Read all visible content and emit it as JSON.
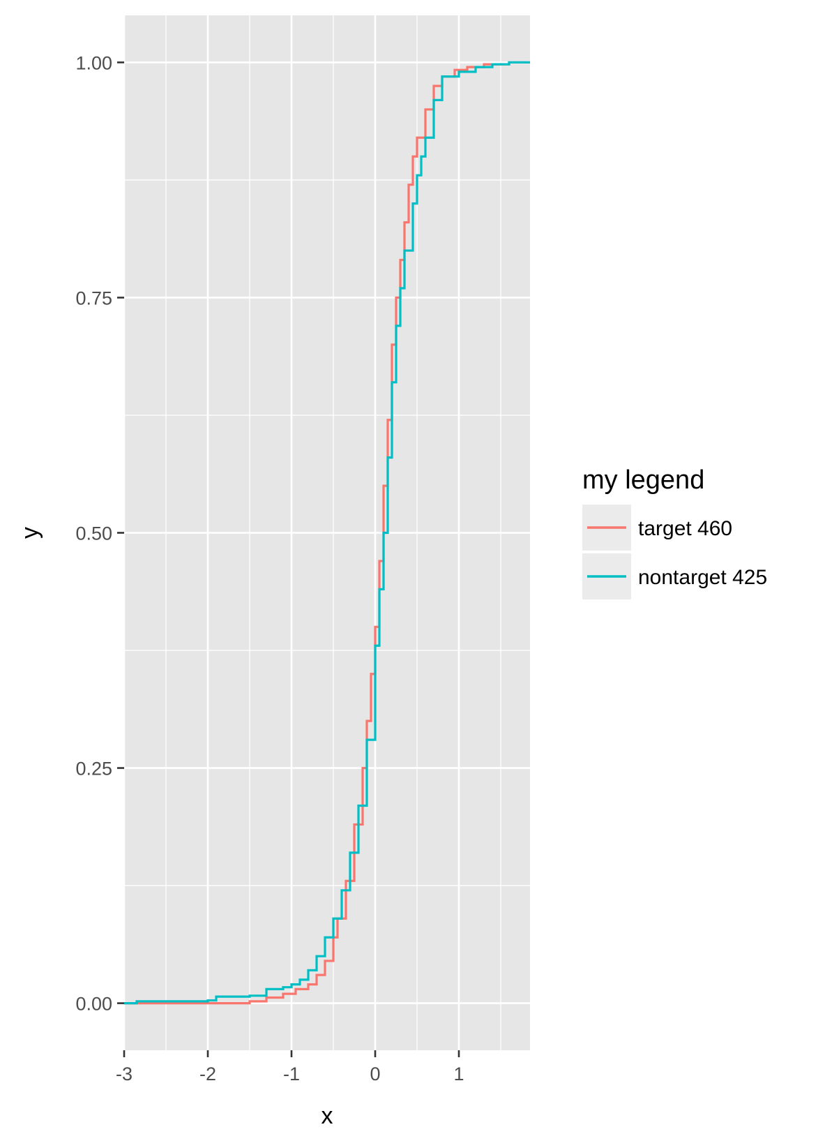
{
  "chart_data": {
    "type": "line",
    "subtype": "empirical-cdf-step",
    "xlabel": "x",
    "ylabel": "y",
    "xlim": [
      -3.0,
      1.85
    ],
    "ylim": [
      -0.05,
      1.05
    ],
    "x_ticks": [
      -3,
      -2,
      -1,
      0,
      1
    ],
    "x_tick_labels": [
      "-3",
      "-2",
      "-1",
      "0",
      "1"
    ],
    "y_ticks": [
      0,
      0.25,
      0.5,
      0.75,
      1
    ],
    "y_tick_labels": [
      "0.00",
      "0.25",
      "0.50",
      "0.75",
      "1.00"
    ],
    "grid": true,
    "panel_background": "#e6e6e6",
    "grid_color": "#ffffff",
    "legend": {
      "title": "my legend",
      "position": "right"
    },
    "series": [
      {
        "name": "target 460",
        "color": "#f8766d",
        "points": [
          [
            -3.0,
            0.0
          ],
          [
            -1.7,
            0.0
          ],
          [
            -1.5,
            0.002
          ],
          [
            -1.3,
            0.006
          ],
          [
            -1.1,
            0.01
          ],
          [
            -0.95,
            0.015
          ],
          [
            -0.8,
            0.02
          ],
          [
            -0.7,
            0.03
          ],
          [
            -0.6,
            0.045
          ],
          [
            -0.5,
            0.07
          ],
          [
            -0.45,
            0.09
          ],
          [
            -0.35,
            0.13
          ],
          [
            -0.25,
            0.19
          ],
          [
            -0.15,
            0.25
          ],
          [
            -0.1,
            0.3
          ],
          [
            -0.05,
            0.35
          ],
          [
            0.0,
            0.4
          ],
          [
            0.05,
            0.47
          ],
          [
            0.1,
            0.55
          ],
          [
            0.15,
            0.62
          ],
          [
            0.2,
            0.7
          ],
          [
            0.25,
            0.75
          ],
          [
            0.3,
            0.79
          ],
          [
            0.35,
            0.83
          ],
          [
            0.4,
            0.87
          ],
          [
            0.45,
            0.9
          ],
          [
            0.5,
            0.92
          ],
          [
            0.6,
            0.95
          ],
          [
            0.7,
            0.975
          ],
          [
            0.8,
            0.985
          ],
          [
            0.95,
            0.992
          ],
          [
            1.1,
            0.995
          ],
          [
            1.3,
            0.998
          ],
          [
            1.6,
            1.0
          ]
        ]
      },
      {
        "name": "nontarget 425",
        "color": "#00bfc4",
        "points": [
          [
            -3.0,
            0.0
          ],
          [
            -2.85,
            0.002
          ],
          [
            -2.0,
            0.003
          ],
          [
            -1.9,
            0.007
          ],
          [
            -1.5,
            0.008
          ],
          [
            -1.3,
            0.015
          ],
          [
            -1.1,
            0.017
          ],
          [
            -1.0,
            0.02
          ],
          [
            -0.9,
            0.025
          ],
          [
            -0.8,
            0.035
          ],
          [
            -0.7,
            0.05
          ],
          [
            -0.6,
            0.07
          ],
          [
            -0.5,
            0.09
          ],
          [
            -0.4,
            0.12
          ],
          [
            -0.3,
            0.16
          ],
          [
            -0.2,
            0.21
          ],
          [
            -0.1,
            0.28
          ],
          [
            0.0,
            0.38
          ],
          [
            0.05,
            0.44
          ],
          [
            0.1,
            0.5
          ],
          [
            0.15,
            0.58
          ],
          [
            0.2,
            0.66
          ],
          [
            0.25,
            0.72
          ],
          [
            0.3,
            0.76
          ],
          [
            0.35,
            0.8
          ],
          [
            0.45,
            0.85
          ],
          [
            0.5,
            0.88
          ],
          [
            0.55,
            0.9
          ],
          [
            0.6,
            0.92
          ],
          [
            0.7,
            0.96
          ],
          [
            0.8,
            0.985
          ],
          [
            1.0,
            0.99
          ],
          [
            1.2,
            0.995
          ],
          [
            1.4,
            0.998
          ],
          [
            1.6,
            1.0
          ],
          [
            1.85,
            1.0
          ]
        ]
      }
    ]
  }
}
